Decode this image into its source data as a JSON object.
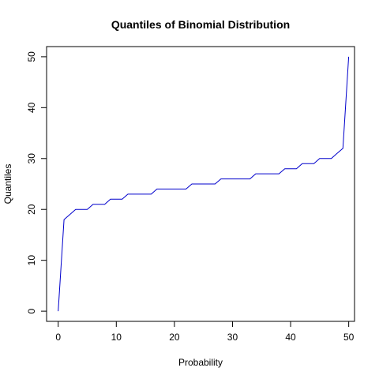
{
  "chart_data": {
    "type": "line",
    "title": "Quantiles of Binomial Distribution",
    "xlabel": "Probability",
    "ylabel": "Quantiles",
    "xlim": [
      -2,
      51
    ],
    "ylim": [
      -2,
      52
    ],
    "xticks": [
      0,
      10,
      20,
      30,
      40,
      50
    ],
    "yticks": [
      0,
      10,
      20,
      30,
      40,
      50
    ],
    "grid": false,
    "series": [
      {
        "color": "#0000cc",
        "x": [
          0,
          1,
          2,
          3,
          4,
          5,
          6,
          7,
          8,
          9,
          10,
          11,
          12,
          13,
          14,
          15,
          16,
          17,
          18,
          19,
          20,
          21,
          22,
          23,
          24,
          25,
          26,
          27,
          28,
          29,
          30,
          31,
          32,
          33,
          34,
          35,
          36,
          37,
          38,
          39,
          40,
          41,
          42,
          43,
          44,
          45,
          46,
          47,
          48,
          49,
          50
        ],
        "y": [
          0,
          18,
          19,
          20,
          20,
          20,
          21,
          21,
          21,
          22,
          22,
          22,
          23,
          23,
          23,
          23,
          23,
          24,
          24,
          24,
          24,
          24,
          24,
          25,
          25,
          25,
          25,
          25,
          26,
          26,
          26,
          26,
          26,
          26,
          27,
          27,
          27,
          27,
          27,
          28,
          28,
          28,
          29,
          29,
          29,
          30,
          30,
          30,
          31,
          32,
          50
        ]
      }
    ]
  }
}
